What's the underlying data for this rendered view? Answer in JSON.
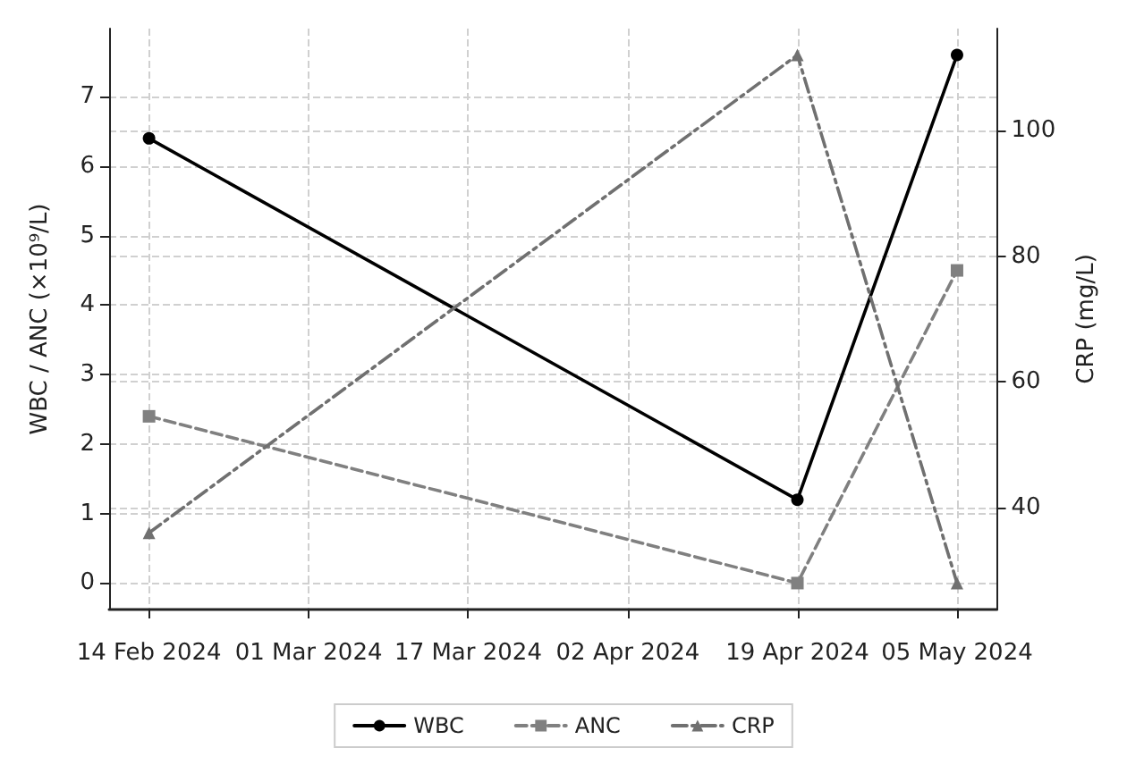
{
  "chart_data": {
    "type": "line",
    "ylabel": "WBC / ANC (×10⁹/L)",
    "y2label": "CRP (mg/L)",
    "x": [
      "2024-02-14",
      "2024-04-19",
      "2024-05-05"
    ],
    "xlim": [
      "2024-02-10",
      "2024-05-09"
    ],
    "xticks": [
      {
        "value": "2024-02-14",
        "label": "14 Feb 2024"
      },
      {
        "value": "2024-03-01",
        "label": "01 Mar 2024"
      },
      {
        "value": "2024-03-17",
        "label": "17 Mar 2024"
      },
      {
        "value": "2024-04-02",
        "label": "02 Apr 2024"
      },
      {
        "value": "2024-04-19",
        "label": "19 Apr 2024"
      },
      {
        "value": "2024-05-05",
        "label": "05 May 2024"
      }
    ],
    "ylim": [
      -0.38,
      7.98
    ],
    "yticks": [
      0,
      1,
      2,
      3,
      4,
      5,
      6,
      7
    ],
    "y2lim": [
      23.8,
      116.2
    ],
    "y2ticks": [
      40,
      60,
      80,
      100
    ],
    "series": [
      {
        "name": "WBC",
        "color": "#000000",
        "values": [
          6.4,
          1.2,
          7.6
        ],
        "marker": "circle",
        "line_style": "solid"
      },
      {
        "name": "ANC",
        "color": "#808080",
        "values": [
          2.4,
          0,
          4.5
        ],
        "marker": "square",
        "line_style": "dashed"
      },
      {
        "name": "CRP",
        "color": "#707070",
        "values": [
          36,
          112,
          28
        ],
        "marker": "triangle",
        "line_style": "dashdot",
        "axis": "y2"
      }
    ],
    "grid": true,
    "legend": "bottom"
  }
}
